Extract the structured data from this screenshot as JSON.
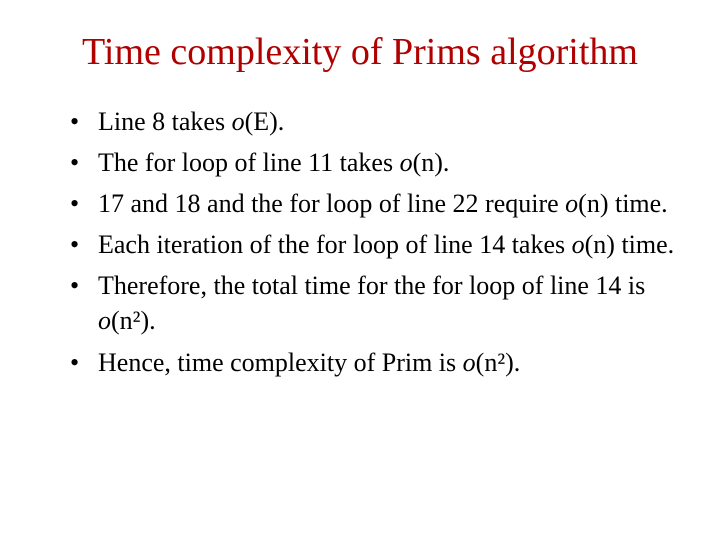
{
  "title_color": "#b00000",
  "body_color": "#000000",
  "title": "Time complexity of Prims algorithm",
  "bullets": [
    {
      "pre": "Line 8 takes ",
      "it": "o",
      "post": "(E)."
    },
    {
      "pre": "The for loop of line 11 takes ",
      "it": "o",
      "post": "(n)."
    },
    {
      "pre": "17 and 18 and the for loop of line 22 require ",
      "it": "o",
      "post": "(n) time."
    },
    {
      "pre": "Each iteration of the for loop of line 14 takes ",
      "it": "o",
      "post": "(n) time."
    },
    {
      "pre": "Therefore, the total time for the  for loop of line 14 is ",
      "it": "o",
      "post": "(n²)."
    },
    {
      "pre": "Hence, time complexity of Prim is ",
      "it": "o",
      "post": "(n²)."
    }
  ]
}
